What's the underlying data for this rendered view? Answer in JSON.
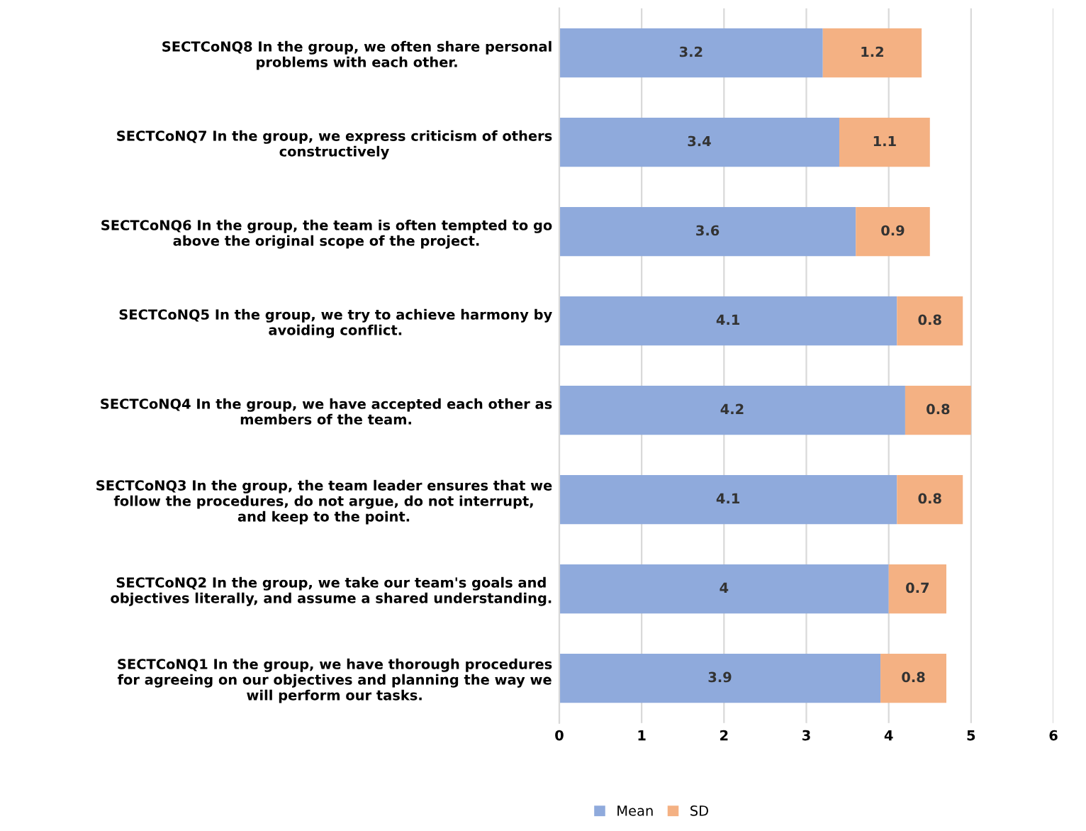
{
  "chart_data": {
    "type": "bar",
    "orientation": "horizontal",
    "stacked": true,
    "categories": [
      "SECTCoNQ8 In the group, we often share personal\nproblems with each other.",
      "SECTCoNQ7 In the group, we express criticism of others\nconstructively",
      "SECTCoNQ6 In the group, the team is often tempted to go\nabove the original scope of the project.",
      "SECTCoNQ5 In the group, we try to achieve harmony by\navoiding conflict.",
      "SECTCoNQ4 In the group, we have accepted each other as\nmembers of the team.",
      "SECTCoNQ3 In the group, the team leader ensures that we\nfollow the procedures, do not argue, do not interrupt,\nand keep to the point.",
      "SECTCoNQ2 In the group, we take our team's goals and\nobjectives literally, and assume a shared understanding.",
      "SECTCoNQ1 In the group, we have thorough procedures\nfor agreeing on our objectives and planning the way we\nwill perform our tasks."
    ],
    "series": [
      {
        "name": "Mean",
        "color": "#8faadc",
        "values": [
          3.2,
          3.4,
          3.6,
          4.1,
          4.2,
          4.1,
          4,
          3.9
        ]
      },
      {
        "name": "SD",
        "color": "#f4b183",
        "values": [
          1.2,
          1.1,
          0.9,
          0.8,
          0.8,
          0.8,
          0.7,
          0.8
        ]
      }
    ],
    "xlim": [
      0,
      6
    ],
    "xticks": [
      0,
      1,
      2,
      3,
      4,
      5,
      6
    ],
    "grid": "x",
    "data_labels": true,
    "legend": "bottom"
  }
}
